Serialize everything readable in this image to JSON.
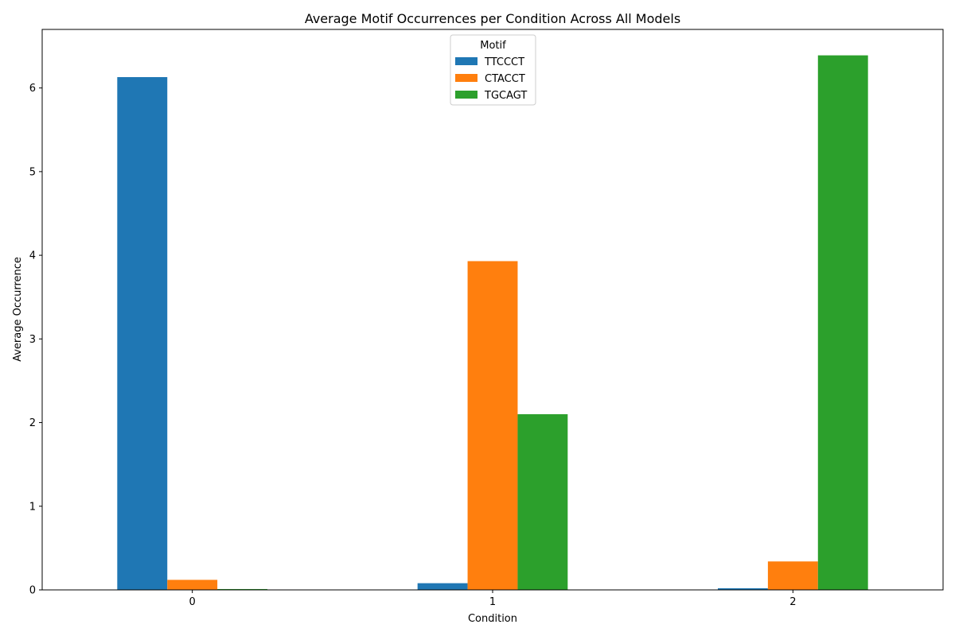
{
  "chart_data": {
    "type": "bar",
    "title": "Average Motif Occurrences per Condition Across All Models",
    "xlabel": "Condition",
    "ylabel": "Average Occurrence",
    "categories": [
      "0",
      "1",
      "2"
    ],
    "ylim": [
      0,
      6.7
    ],
    "yticks": [
      "0",
      "1",
      "2",
      "3",
      "4",
      "5",
      "6"
    ],
    "grid": false,
    "legend": {
      "title": "Motif",
      "placement": "top-center"
    },
    "series": [
      {
        "name": "TTCCCT",
        "color": "#1f77b4",
        "values": [
          6.13,
          0.08,
          0.02
        ]
      },
      {
        "name": "CTACCT",
        "color": "#ff7f0e",
        "values": [
          0.12,
          3.93,
          0.34
        ]
      },
      {
        "name": "TGCAGT",
        "color": "#2ca02c",
        "values": [
          0.01,
          2.1,
          6.39
        ]
      }
    ]
  }
}
